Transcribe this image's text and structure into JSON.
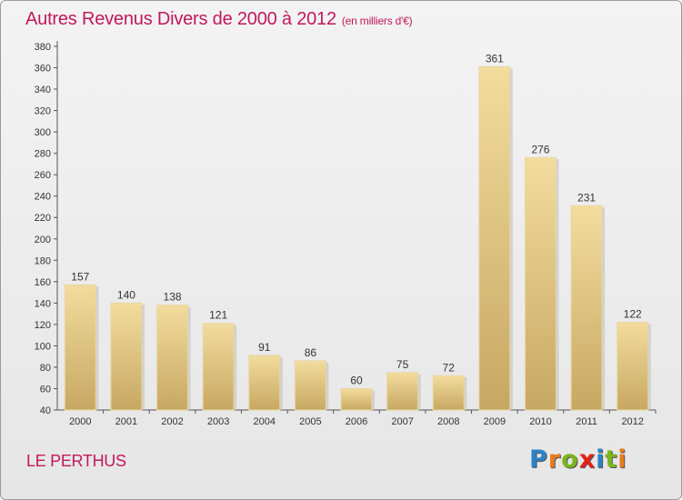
{
  "chart_data": {
    "type": "bar",
    "title": "Autres Revenus Divers de 2000 à 2012",
    "subtitle": "(en milliers d'€)",
    "categories": [
      "2000",
      "2001",
      "2002",
      "2003",
      "2004",
      "2005",
      "2006",
      "2007",
      "2008",
      "2009",
      "2010",
      "2011",
      "2012"
    ],
    "values": [
      157,
      140,
      138,
      121,
      91,
      86,
      60,
      75,
      72,
      361,
      276,
      231,
      122
    ],
    "ylim": [
      40,
      380
    ],
    "yticks": [
      40,
      60,
      80,
      100,
      120,
      140,
      160,
      180,
      200,
      220,
      240,
      260,
      280,
      300,
      320,
      340,
      360,
      380
    ],
    "grid": false,
    "legend": "none",
    "bar_color": "#dcc07a",
    "bar_color_light": "#f2dc9e",
    "bar_color_dark": "#c7a862"
  },
  "footer": {
    "commune": "LE PERTHUS",
    "logo_letters": [
      {
        "char": "P",
        "color": "#2e82c8"
      },
      {
        "char": "r",
        "color": "#e87b1c"
      },
      {
        "char": "o",
        "color": "#7ab51d"
      },
      {
        "char": "x",
        "color": "#e2231a"
      },
      {
        "char": "i",
        "color": "#2e82c8"
      },
      {
        "char": "t",
        "color": "#7ab51d"
      },
      {
        "char": "i",
        "color": "#e87b1c"
      }
    ]
  },
  "colors": {
    "accent": "#c2185b",
    "axis": "#555555"
  }
}
